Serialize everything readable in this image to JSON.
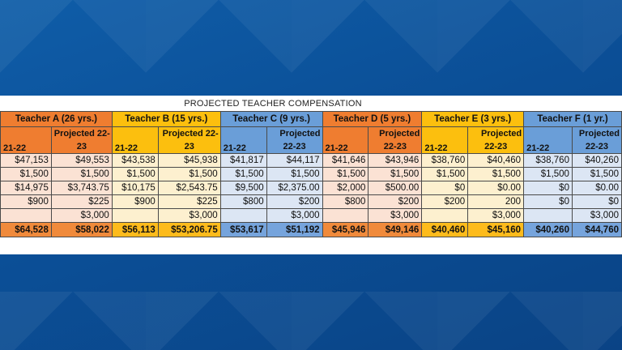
{
  "title": "PROJECTED TEACHER COMPENSATION",
  "teachers": [
    {
      "name": "Teacher A (26 yrs.)",
      "col1": "21-22",
      "col2_l1": "Projected 22-",
      "col2_l2": "23",
      "rows": [
        [
          "$47,153",
          "$49,553"
        ],
        [
          "$1,500",
          "$1,500"
        ],
        [
          "$14,975",
          "$3,743.75"
        ],
        [
          "$900",
          "$225"
        ],
        [
          "",
          "$3,000"
        ]
      ],
      "total": [
        "$64,528",
        "$58,022"
      ]
    },
    {
      "name": "Teacher B (15 yrs.)",
      "col1": "21-22",
      "col2_l1": "Projected 22-",
      "col2_l2": "23",
      "rows": [
        [
          "$43,538",
          "$45,938"
        ],
        [
          "$1,500",
          "$1,500"
        ],
        [
          "$10,175",
          "$2,543.75"
        ],
        [
          "$900",
          "$225"
        ],
        [
          "",
          "$3,000"
        ]
      ],
      "total": [
        "$56,113",
        "$53,206.75"
      ]
    },
    {
      "name": "Teacher C (9 yrs.)",
      "col1": "21-22",
      "col2_l1": "Projected",
      "col2_l2": "22-23",
      "rows": [
        [
          "$41,817",
          "$44,117"
        ],
        [
          "$1,500",
          "$1,500"
        ],
        [
          "$9,500",
          "$2,375.00"
        ],
        [
          "$800",
          "$200"
        ],
        [
          "",
          "$3,000"
        ]
      ],
      "total": [
        "$53,617",
        "$51,192"
      ]
    },
    {
      "name": "Teacher D (5 yrs.)",
      "col1": "21-22",
      "col2_l1": "Projected",
      "col2_l2": "22-23",
      "rows": [
        [
          "$41,646",
          "$43,946"
        ],
        [
          "$1,500",
          "$1,500"
        ],
        [
          "$2,000",
          "$500.00"
        ],
        [
          "$800",
          "$200"
        ],
        [
          "",
          "$3,000"
        ]
      ],
      "total": [
        "$45,946",
        "$49,146"
      ]
    },
    {
      "name": "Teacher E (3 yrs.)",
      "col1": "21-22",
      "col2_l1": "Projected",
      "col2_l2": "22-23",
      "rows": [
        [
          "$38,760",
          "$40,460"
        ],
        [
          "$1,500",
          "$1,500"
        ],
        [
          "$0",
          "$0.00"
        ],
        [
          "$200",
          "200"
        ],
        [
          "",
          "$3,000"
        ]
      ],
      "total": [
        "$40,460",
        "$45,160"
      ]
    },
    {
      "name": "Teacher F (1 yr.)",
      "col1": "21-22",
      "col2_l1": "Projected",
      "col2_l2": "22-23",
      "rows": [
        [
          "$38,760",
          "$40,260"
        ],
        [
          "$1,500",
          "$1,500"
        ],
        [
          "$0",
          "$0.00"
        ],
        [
          "$0",
          "$0"
        ],
        [
          "",
          "$3,000"
        ]
      ],
      "total": [
        "$40,260",
        "$44,760"
      ]
    }
  ],
  "colors": {
    "orange": "#ef7d30",
    "yellow": "#fcbf0e",
    "blue": "#6a9ed8",
    "background": "#0b4f97"
  }
}
